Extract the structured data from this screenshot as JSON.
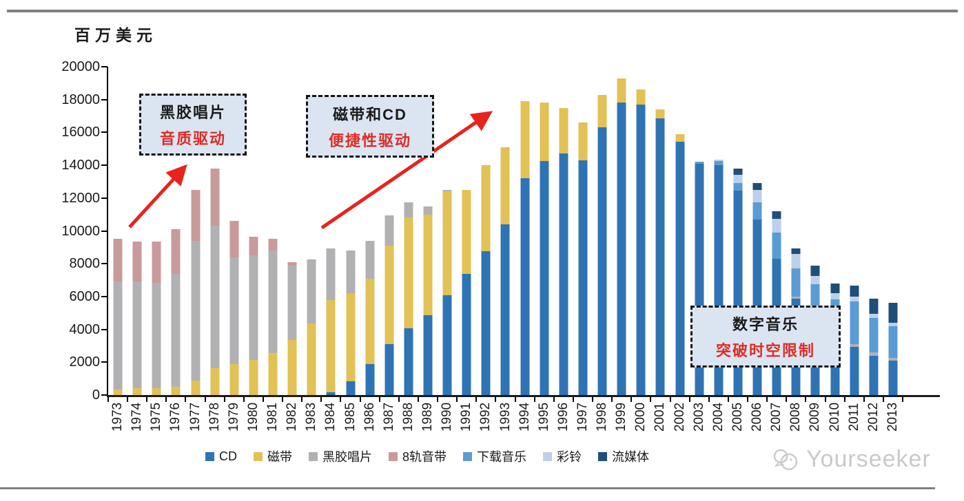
{
  "unit_label": "百万美元",
  "annotations": [
    {
      "id": "vinyl",
      "line1": "黑胶唱片",
      "line2": "音质驱动"
    },
    {
      "id": "tape_cd",
      "line1": "磁带和CD",
      "line2": "便捷性驱动"
    },
    {
      "id": "digital",
      "line1": "数字音乐",
      "line2": "突破时空限制"
    }
  ],
  "watermark": {
    "text": "Yourseeker"
  },
  "colors": {
    "cd": "#2e74b5",
    "cassette": "#e2c155",
    "vinyl": "#b1b1b4",
    "eight_track": "#c89a9a",
    "downloads": "#5b9bd5",
    "ringtones": "#bcd0ea",
    "streaming": "#1f4e79",
    "arrow_red": "#e8231d",
    "callout_bg": "#dbe5f2"
  },
  "chart_data": {
    "type": "bar",
    "stacked": true,
    "title": "",
    "ylabel": "百万美元",
    "xlabel": "",
    "ylim": [
      0,
      20000
    ],
    "ytick_step": 2000,
    "grid": false,
    "legend_position": "bottom",
    "categories": [
      1973,
      1974,
      1975,
      1976,
      1977,
      1978,
      1979,
      1980,
      1981,
      1982,
      1983,
      1984,
      1985,
      1986,
      1987,
      1988,
      1989,
      1990,
      1991,
      1992,
      1993,
      1994,
      1995,
      1996,
      1997,
      1998,
      1999,
      2000,
      2001,
      2002,
      2003,
      2004,
      2005,
      2006,
      2007,
      2008,
      2009,
      2010,
      2011,
      2012,
      2013
    ],
    "series": [
      {
        "name": "CD",
        "color": "#2e74b5",
        "values": [
          0,
          0,
          0,
          0,
          0,
          0,
          0,
          0,
          0,
          0,
          0,
          150,
          830,
          1900,
          3100,
          4050,
          4850,
          6100,
          7400,
          8750,
          10400,
          13200,
          14250,
          14700,
          14300,
          16300,
          17800,
          17700,
          16850,
          15450,
          14100,
          14000,
          12450,
          10700,
          8300,
          5850,
          4550,
          3500,
          2950,
          2400,
          2100
        ]
      },
      {
        "name": "磁带",
        "color": "#e2c155",
        "values": [
          350,
          400,
          400,
          500,
          900,
          1650,
          1900,
          2150,
          2550,
          3350,
          4350,
          5650,
          5370,
          5200,
          6000,
          6750,
          6150,
          6300,
          5100,
          5250,
          4700,
          4700,
          3550,
          2800,
          2300,
          2000,
          1500,
          900,
          550,
          450,
          0,
          0,
          0,
          0,
          0,
          0,
          0,
          0,
          0,
          0,
          0
        ]
      },
      {
        "name": "黑胶唱片",
        "color": "#b1b1b4",
        "values": [
          6550,
          6500,
          6450,
          6900,
          8500,
          8650,
          6500,
          6350,
          6250,
          4550,
          3850,
          3150,
          2600,
          2300,
          1850,
          950,
          500,
          100,
          0,
          0,
          0,
          0,
          0,
          0,
          0,
          0,
          0,
          0,
          0,
          0,
          0,
          0,
          0,
          0,
          0,
          150,
          100,
          100,
          150,
          180,
          150
        ]
      },
      {
        "name": "8轨音带",
        "color": "#c89a9a",
        "values": [
          2600,
          2450,
          2500,
          2700,
          3100,
          3500,
          2200,
          1150,
          700,
          200,
          50,
          0,
          0,
          0,
          0,
          0,
          0,
          0,
          0,
          0,
          0,
          0,
          0,
          0,
          0,
          0,
          0,
          0,
          0,
          0,
          0,
          0,
          0,
          0,
          0,
          0,
          0,
          0,
          0,
          0,
          0
        ]
      },
      {
        "name": "下载音乐",
        "color": "#5b9bd5",
        "values": [
          0,
          0,
          0,
          0,
          0,
          0,
          0,
          0,
          0,
          0,
          0,
          0,
          0,
          0,
          0,
          0,
          0,
          0,
          0,
          0,
          0,
          0,
          0,
          0,
          0,
          0,
          0,
          0,
          0,
          0,
          100,
          250,
          480,
          1050,
          1600,
          1700,
          2100,
          2250,
          2600,
          2100,
          1950
        ]
      },
      {
        "name": "彩铃",
        "color": "#bcd0ea",
        "values": [
          0,
          0,
          0,
          0,
          0,
          0,
          0,
          0,
          0,
          0,
          0,
          0,
          0,
          0,
          0,
          0,
          0,
          0,
          0,
          0,
          0,
          0,
          0,
          0,
          0,
          0,
          0,
          0,
          0,
          0,
          0,
          100,
          480,
          750,
          840,
          900,
          500,
          350,
          280,
          280,
          200
        ]
      },
      {
        "name": "流媒体",
        "color": "#1f4e79",
        "values": [
          0,
          0,
          0,
          0,
          0,
          0,
          0,
          0,
          0,
          0,
          0,
          0,
          0,
          0,
          0,
          0,
          0,
          0,
          0,
          0,
          0,
          0,
          0,
          0,
          0,
          0,
          0,
          0,
          0,
          0,
          0,
          0,
          390,
          400,
          460,
          350,
          650,
          600,
          700,
          900,
          1200
        ]
      }
    ]
  }
}
